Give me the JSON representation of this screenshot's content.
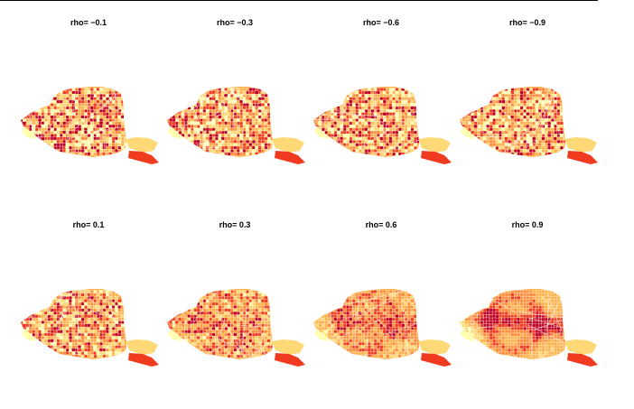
{
  "chart_data": {
    "type": "heatmap",
    "palette": [
      "#ffffb2",
      "#fed976",
      "#feb24c",
      "#fd8d3c",
      "#f03b20",
      "#bd0026"
    ],
    "panels": [
      {
        "title": "rho= −0.1",
        "rho": -0.1
      },
      {
        "title": "rho= −0.3",
        "rho": -0.3
      },
      {
        "title": "rho= −0.6",
        "rho": -0.6
      },
      {
        "title": "rho= −0.9",
        "rho": -0.9
      },
      {
        "title": "rho= 0.1",
        "rho": 0.1
      },
      {
        "title": "rho= 0.3",
        "rho": 0.3
      },
      {
        "title": "rho= 0.6",
        "rho": 0.6
      },
      {
        "title": "rho= 0.9",
        "rho": 0.9
      }
    ]
  }
}
